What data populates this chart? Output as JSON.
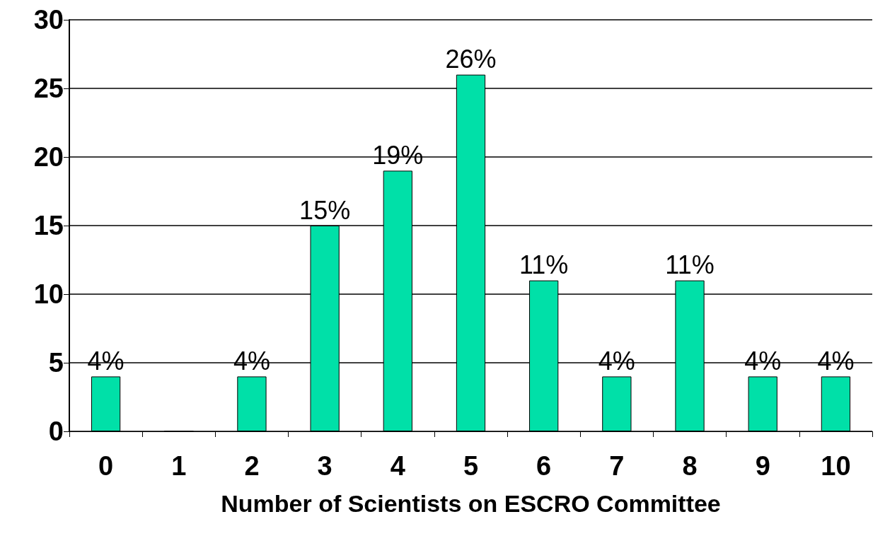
{
  "chart_data": {
    "type": "bar",
    "xlabel": "Number of Scientists on ESCRO Committee",
    "categories": [
      "0",
      "1",
      "2",
      "3",
      "4",
      "5",
      "6",
      "7",
      "8",
      "9",
      "10"
    ],
    "values": [
      4,
      0,
      4,
      15,
      19,
      26,
      11,
      4,
      11,
      4,
      4
    ],
    "value_labels": [
      "4%",
      null,
      "4%",
      "15%",
      "19%",
      "26%",
      "11%",
      "4%",
      "11%",
      "4%",
      "4%"
    ],
    "color": "#00e0a8",
    "ylim": [
      0,
      30
    ],
    "yticks": [
      0,
      5,
      10,
      15,
      20,
      25,
      30
    ],
    "grid": "y"
  }
}
